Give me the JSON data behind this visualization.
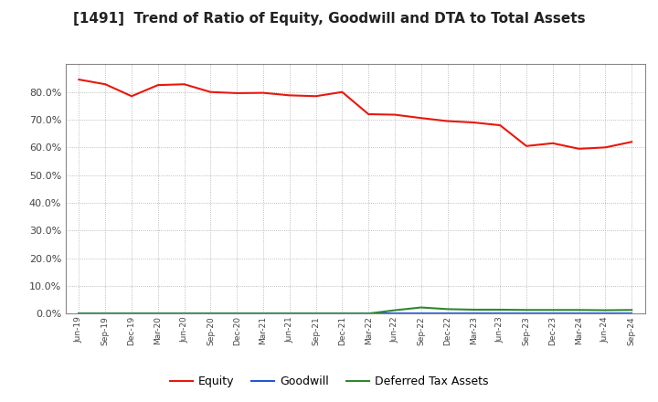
{
  "title": "[1491]  Trend of Ratio of Equity, Goodwill and DTA to Total Assets",
  "x_labels": [
    "Jun-19",
    "Sep-19",
    "Dec-19",
    "Mar-20",
    "Jun-20",
    "Sep-20",
    "Dec-20",
    "Mar-21",
    "Jun-21",
    "Sep-21",
    "Dec-21",
    "Mar-22",
    "Jun-22",
    "Sep-22",
    "Dec-22",
    "Mar-23",
    "Jun-23",
    "Sep-23",
    "Dec-23",
    "Mar-24",
    "Jun-24",
    "Sep-24"
  ],
  "equity": [
    0.845,
    0.828,
    0.785,
    0.825,
    0.828,
    0.8,
    0.796,
    0.797,
    0.788,
    0.785,
    0.8,
    0.72,
    0.718,
    0.706,
    0.695,
    0.69,
    0.68,
    0.605,
    0.615,
    0.595,
    0.6,
    0.62
  ],
  "goodwill": [
    0.0,
    0.0,
    0.0,
    0.0,
    0.0,
    0.0,
    0.0,
    0.0,
    0.0,
    0.0,
    0.0,
    0.0,
    0.0,
    0.0,
    0.0,
    0.0,
    0.0,
    0.0,
    0.0,
    0.0,
    0.0,
    0.0
  ],
  "dta": [
    0.0,
    0.0,
    0.0,
    0.0,
    0.0,
    0.0,
    0.0,
    0.0,
    0.0,
    0.0,
    0.0,
    0.0,
    0.012,
    0.022,
    0.016,
    0.014,
    0.014,
    0.013,
    0.013,
    0.013,
    0.012,
    0.013
  ],
  "equity_color": "#e8180c",
  "goodwill_color": "#2456d4",
  "dta_color": "#2d8a2d",
  "ylim": [
    0.0,
    0.9
  ],
  "yticks": [
    0.0,
    0.1,
    0.2,
    0.3,
    0.4,
    0.5,
    0.6,
    0.7,
    0.8
  ],
  "background_color": "#ffffff",
  "grid_color": "#aaaaaa",
  "title_fontsize": 11,
  "legend_labels": [
    "Equity",
    "Goodwill",
    "Deferred Tax Assets"
  ]
}
